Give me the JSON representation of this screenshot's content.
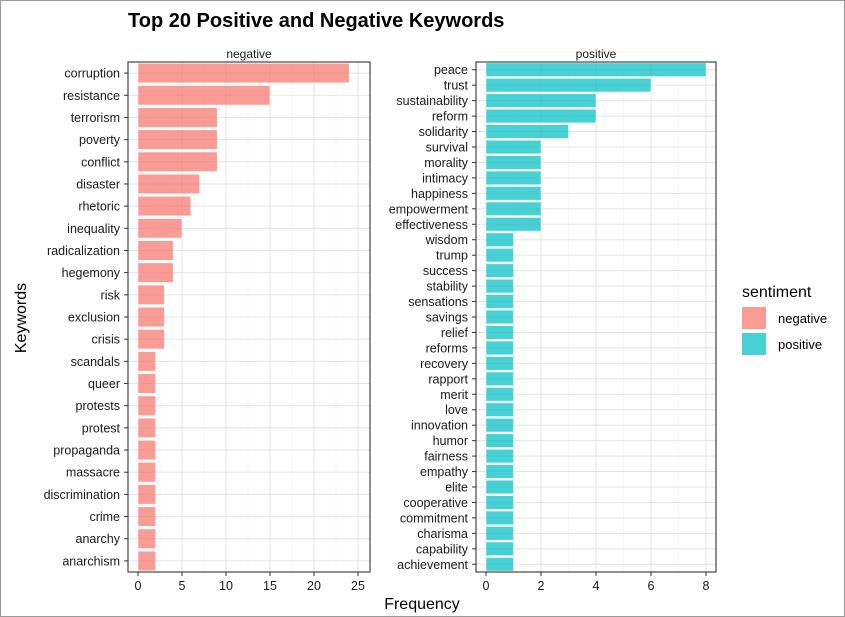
{
  "chart_data": {
    "type": "bar",
    "orientation": "horizontal",
    "title": "Top 20 Positive and Negative Keywords",
    "xlabel": "Frequency",
    "ylabel": "Keywords",
    "grid": true,
    "legend": {
      "title": "sentiment",
      "placement": "right",
      "entries": [
        {
          "label": "negative",
          "color": "#F8766D"
        },
        {
          "label": "positive",
          "color": "#00BFC4"
        }
      ]
    },
    "panels": [
      {
        "name": "negative",
        "color": "#F8766D",
        "xlim": [
          0,
          25
        ],
        "xticks": [
          "0",
          "5",
          "10",
          "15",
          "20",
          "25"
        ],
        "categories": [
          "corruption",
          "resistance",
          "terrorism",
          "poverty",
          "conflict",
          "disaster",
          "rhetoric",
          "inequality",
          "radicalization",
          "hegemony",
          "risk",
          "exclusion",
          "crisis",
          "scandals",
          "queer",
          "protests",
          "protest",
          "propaganda",
          "massacre",
          "discrimination",
          "crime",
          "anarchy",
          "anarchism"
        ],
        "values": [
          24,
          15,
          9,
          9,
          9,
          7,
          6,
          5,
          4,
          4,
          3,
          3,
          3,
          2,
          2,
          2,
          2,
          2,
          2,
          2,
          2,
          2,
          2
        ]
      },
      {
        "name": "positive",
        "color": "#00BFC4",
        "xlim": [
          0,
          8
        ],
        "xticks": [
          "0",
          "2",
          "4",
          "6",
          "8"
        ],
        "categories": [
          "peace",
          "trust",
          "sustainability",
          "reform",
          "solidarity",
          "survival",
          "morality",
          "intimacy",
          "happiness",
          "empowerment",
          "effectiveness",
          "wisdom",
          "trump",
          "success",
          "stability",
          "sensations",
          "savings",
          "relief",
          "reforms",
          "recovery",
          "rapport",
          "merit",
          "love",
          "innovation",
          "humor",
          "fairness",
          "empathy",
          "elite",
          "cooperative",
          "commitment",
          "charisma",
          "capability",
          "achievement"
        ],
        "values": [
          8,
          6,
          4,
          4,
          3,
          2,
          2,
          2,
          2,
          2,
          2,
          1,
          1,
          1,
          1,
          1,
          1,
          1,
          1,
          1,
          1,
          1,
          1,
          1,
          1,
          1,
          1,
          1,
          1,
          1,
          1,
          1,
          1
        ]
      }
    ]
  }
}
